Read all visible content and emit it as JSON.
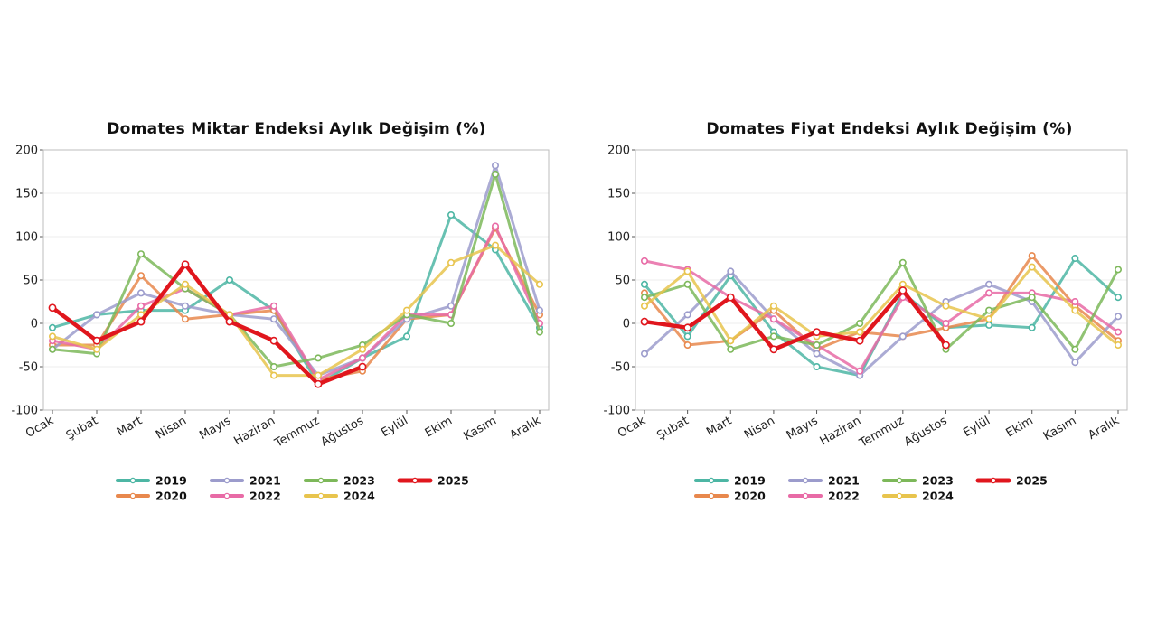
{
  "chart_data": [
    {
      "type": "line",
      "title": "Domates Miktar Endeksi Aylık Değişim (%)",
      "xlabel": "",
      "ylabel": "",
      "categories": [
        "Ocak",
        "Şubat",
        "Mart",
        "Nisan",
        "Mayıs",
        "Haziran",
        "Temmuz",
        "Ağustos",
        "Eylül",
        "Ekim",
        "Kasım",
        "Aralık"
      ],
      "ylim": [
        -100,
        200
      ],
      "yticks": [
        -100,
        -50,
        0,
        50,
        100,
        150,
        200
      ],
      "grid": true,
      "legend_position": "bottom",
      "series": [
        {
          "name": "2019",
          "color": "#4db6a4",
          "values": [
            -5,
            10,
            15,
            15,
            50,
            15,
            -70,
            -40,
            -15,
            125,
            85,
            -5
          ]
        },
        {
          "name": "2020",
          "color": "#e8884d",
          "values": [
            -25,
            -25,
            55,
            5,
            10,
            15,
            -65,
            -55,
            5,
            10,
            110,
            10
          ]
        },
        {
          "name": "2021",
          "color": "#9c9ccc",
          "values": [
            -30,
            10,
            35,
            20,
            10,
            5,
            -60,
            -40,
            5,
            20,
            182,
            15
          ]
        },
        {
          "name": "2022",
          "color": "#e86ba6",
          "values": [
            -20,
            -30,
            20,
            40,
            10,
            20,
            -65,
            -40,
            10,
            10,
            112,
            0
          ]
        },
        {
          "name": "2023",
          "color": "#7db85a",
          "values": [
            -30,
            -35,
            80,
            40,
            10,
            -50,
            -40,
            -25,
            10,
            0,
            172,
            -10
          ]
        },
        {
          "name": "2024",
          "color": "#e8c44d",
          "values": [
            -15,
            -30,
            10,
            45,
            10,
            -60,
            -60,
            -30,
            15,
            70,
            90,
            45
          ]
        },
        {
          "name": "2025",
          "color": "#e0161d",
          "values": [
            18,
            -20,
            2,
            68,
            2,
            -20,
            -70,
            -50,
            null,
            null,
            null,
            null
          ]
        }
      ]
    },
    {
      "type": "line",
      "title": "Domates Fiyat Endeksi Aylık Değişim (%)",
      "xlabel": "",
      "ylabel": "",
      "categories": [
        "Ocak",
        "Şubat",
        "Mart",
        "Nisan",
        "Mayıs",
        "Haziran",
        "Temmuz",
        "Ağustos",
        "Eylül",
        "Ekim",
        "Kasım",
        "Aralık"
      ],
      "ylim": [
        -100,
        200
      ],
      "yticks": [
        -100,
        -50,
        0,
        50,
        100,
        150,
        200
      ],
      "grid": true,
      "legend_position": "bottom",
      "series": [
        {
          "name": "2019",
          "color": "#4db6a4",
          "values": [
            45,
            -15,
            55,
            -10,
            -50,
            -60,
            35,
            -5,
            -2,
            -5,
            75,
            30
          ]
        },
        {
          "name": "2020",
          "color": "#e8884d",
          "values": [
            35,
            -25,
            -20,
            15,
            -30,
            -10,
            -15,
            -5,
            5,
            78,
            20,
            -20
          ]
        },
        {
          "name": "2021",
          "color": "#9c9ccc",
          "values": [
            -35,
            10,
            60,
            5,
            -35,
            -60,
            -15,
            25,
            45,
            25,
            -45,
            8
          ]
        },
        {
          "name": "2022",
          "color": "#e86ba6",
          "values": [
            72,
            62,
            30,
            5,
            -25,
            -55,
            30,
            0,
            35,
            35,
            25,
            -10
          ]
        },
        {
          "name": "2023",
          "color": "#7db85a",
          "values": [
            30,
            45,
            -30,
            -15,
            -25,
            0,
            70,
            -30,
            15,
            30,
            -30,
            62
          ]
        },
        {
          "name": "2024",
          "color": "#e8c44d",
          "values": [
            20,
            60,
            -20,
            20,
            -15,
            -10,
            45,
            20,
            5,
            65,
            15,
            -25
          ]
        },
        {
          "name": "2025",
          "color": "#e0161d",
          "values": [
            2,
            -5,
            30,
            -30,
            -10,
            -20,
            38,
            -25,
            null,
            null,
            null,
            null
          ]
        }
      ]
    }
  ]
}
